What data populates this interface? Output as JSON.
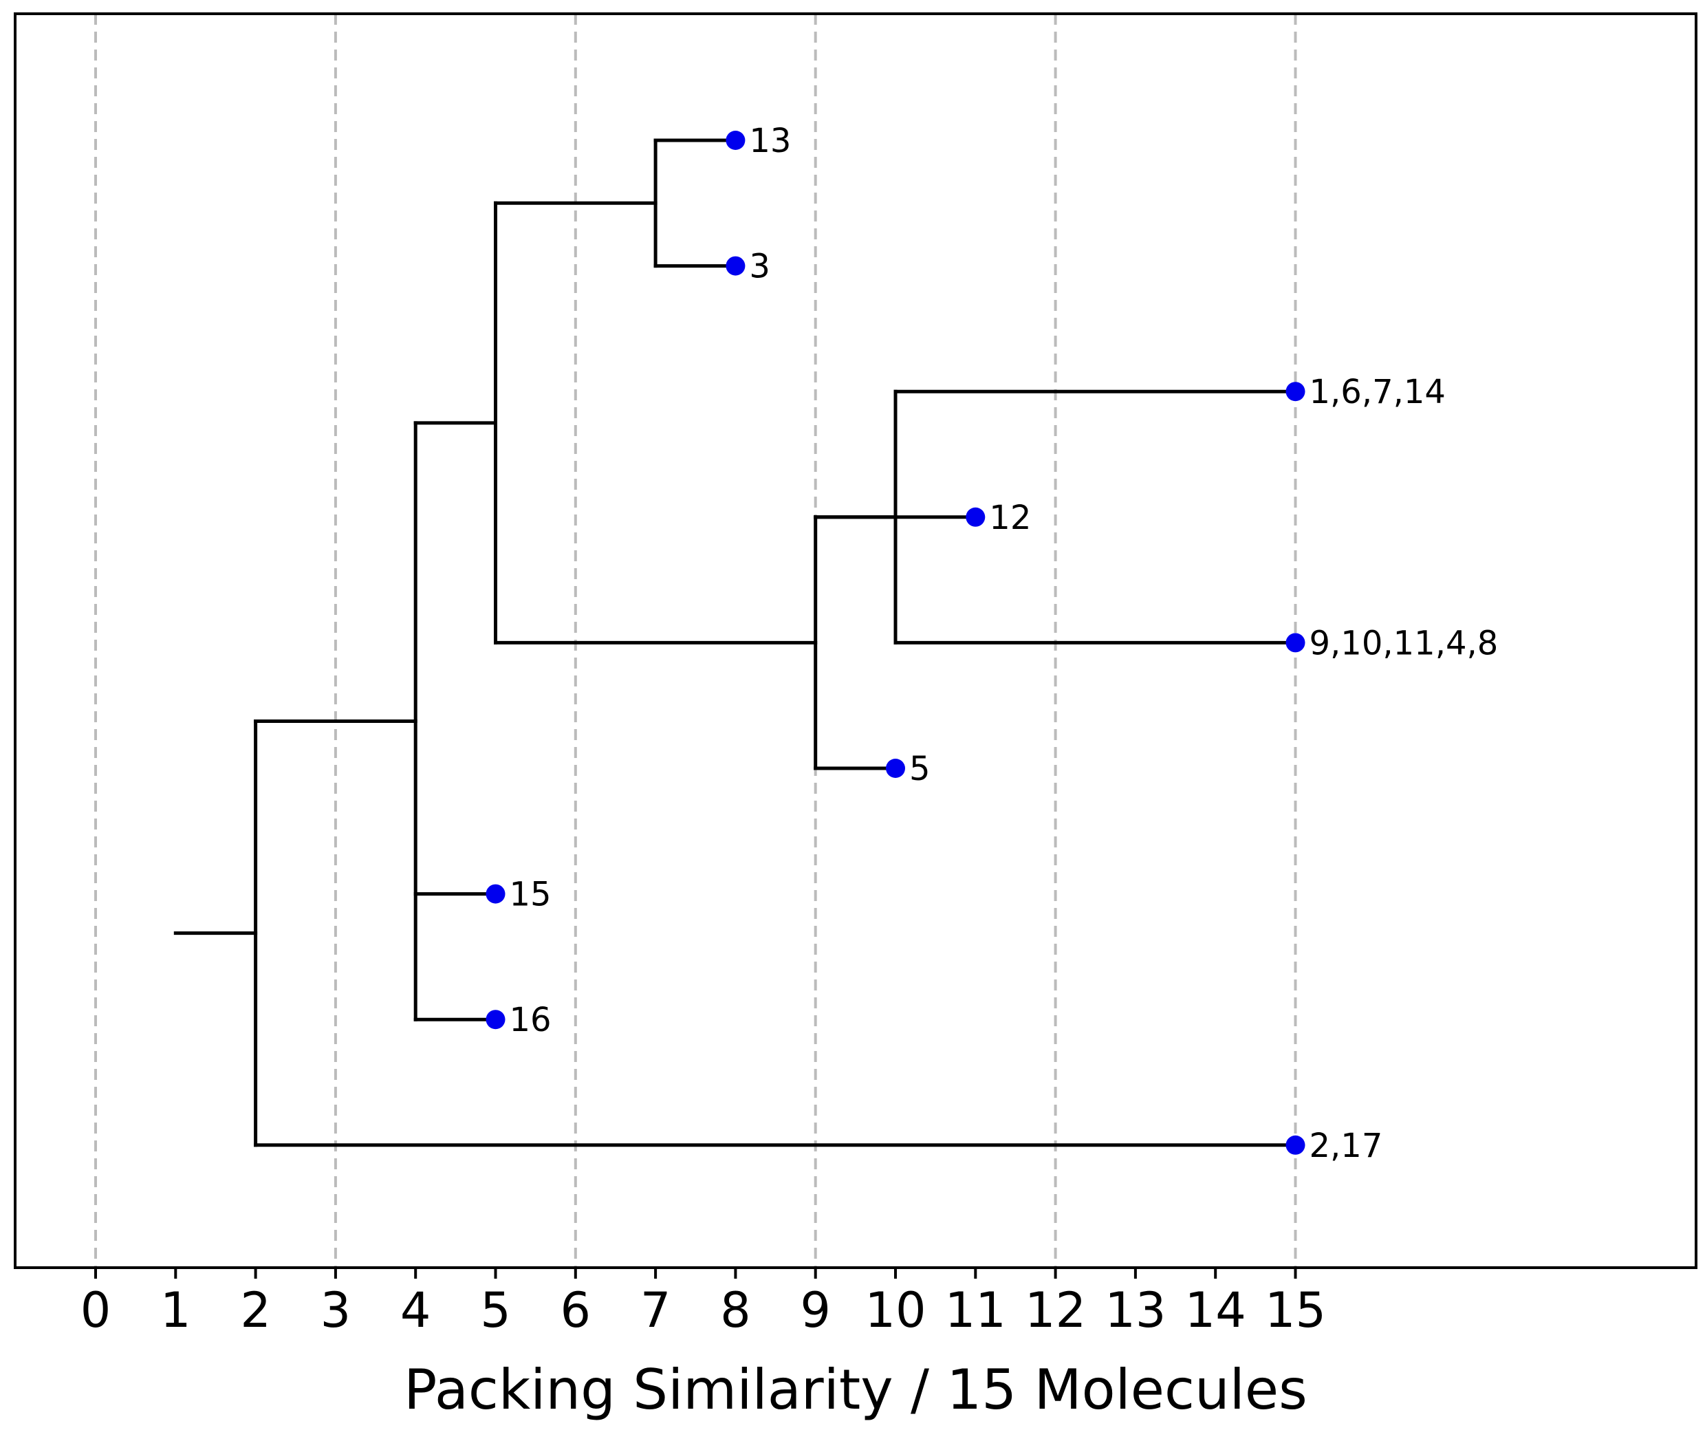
{
  "chart_data": {
    "type": "dendrogram",
    "title": "",
    "xlabel": "Packing Similarity / 15 Molecules",
    "ylabel": "",
    "xlim": [
      -1,
      20
    ],
    "x_ticks": [
      0,
      1,
      2,
      3,
      4,
      5,
      6,
      7,
      8,
      9,
      10,
      11,
      12,
      13,
      14,
      15
    ],
    "x_tick_labels": [
      "0",
      "1",
      "2",
      "3",
      "4",
      "5",
      "6",
      "7",
      "8",
      "9",
      "10",
      "11",
      "12",
      "13",
      "14",
      "15"
    ],
    "gridlines_x": [
      0,
      3,
      6,
      9,
      12,
      15
    ],
    "grid": "vertical dashed",
    "root": {
      "x_start": 1,
      "x": 2
    },
    "leaves": [
      {
        "label": "13",
        "x": 8,
        "row": 0
      },
      {
        "label": "3",
        "x": 8,
        "row": 1
      },
      {
        "label": "1,6,7,14",
        "x": 15,
        "row": 2
      },
      {
        "label": "12",
        "x": 11,
        "row": 3
      },
      {
        "label": "9,10,11,4,8",
        "x": 15,
        "row": 4
      },
      {
        "label": "5",
        "x": 10,
        "row": 5
      },
      {
        "label": "15",
        "x": 5,
        "row": 6
      },
      {
        "label": "16",
        "x": 5,
        "row": 7
      },
      {
        "label": "2,17",
        "x": 15,
        "row": 8
      }
    ],
    "merges": [
      {
        "x": 7,
        "children": [
          "L:13",
          "L:3"
        ]
      },
      {
        "x": 10,
        "children": [
          "L:1,6,7,14",
          "L:9,10,11,4,8"
        ]
      },
      {
        "x": 9,
        "children": [
          "N:1",
          "L:12",
          "L:5"
        ]
      },
      {
        "x": 5,
        "children": [
          "N:0",
          "N:2"
        ]
      },
      {
        "x": 4,
        "children": [
          "N:3",
          "L:15",
          "L:16"
        ]
      },
      {
        "x": 2,
        "children": [
          "N:4",
          "L:2,17"
        ]
      }
    ],
    "colors": {
      "leaf_marker": "#0000ee",
      "branch": "#000000",
      "grid": "#bbbbbb",
      "frame": "#000000"
    }
  }
}
